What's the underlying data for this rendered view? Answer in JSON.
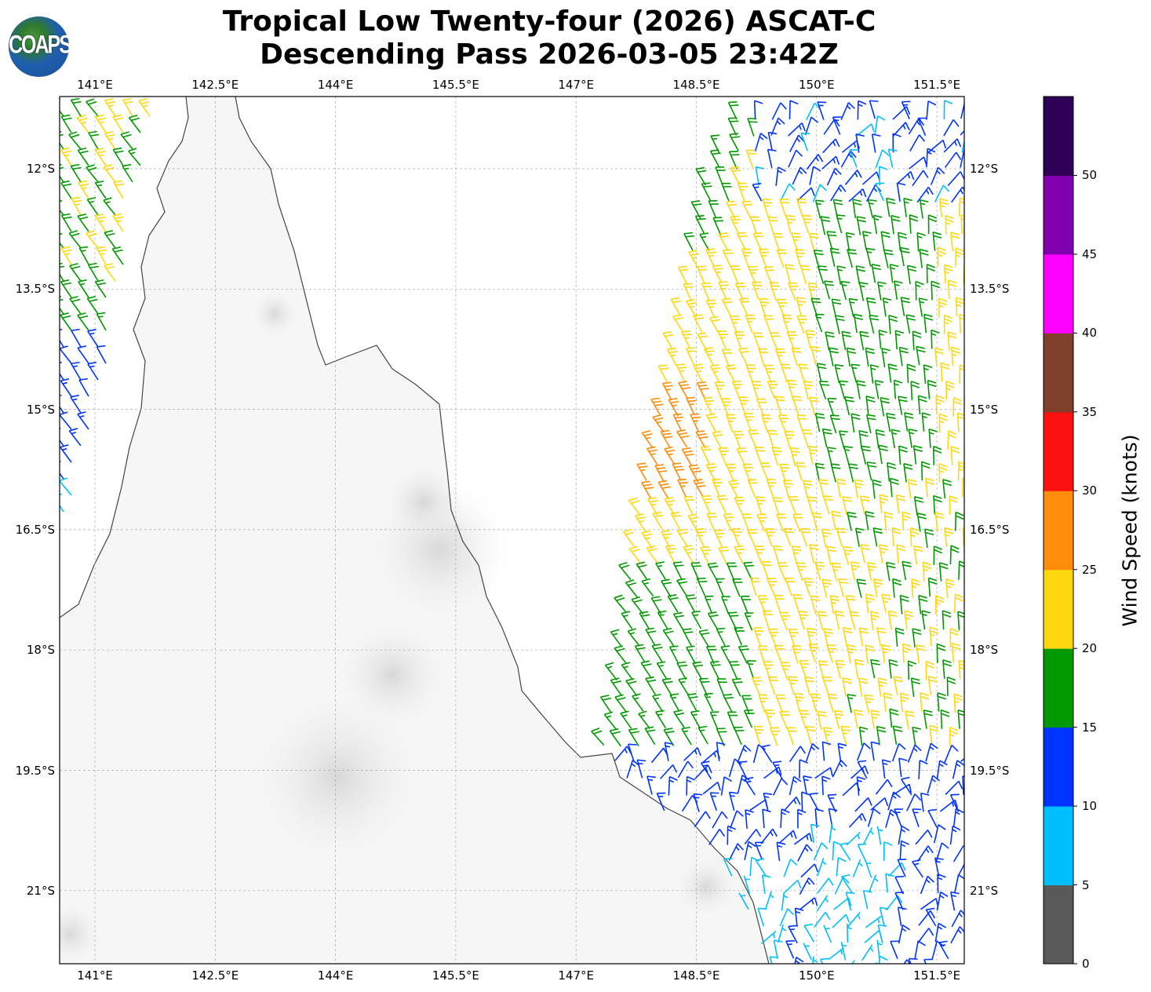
{
  "title": {
    "line1": "Tropical Low Twenty-four (2026) ASCAT-C",
    "line2": "Descending Pass 2026-03-05 23:42Z"
  },
  "logo": {
    "text": "COAPS"
  },
  "map": {
    "lon_ticks": [
      {
        "value": 141,
        "label": "141°E"
      },
      {
        "value": 142.5,
        "label": "142.5°E"
      },
      {
        "value": 144,
        "label": "144°E"
      },
      {
        "value": 145.5,
        "label": "145.5°E"
      },
      {
        "value": 147,
        "label": "147°E"
      },
      {
        "value": 148.5,
        "label": "148.5°E"
      },
      {
        "value": 150,
        "label": "150°E"
      },
      {
        "value": 151.5,
        "label": "151.5°E"
      }
    ],
    "lat_ticks": [
      {
        "value": -12,
        "label": "12°S"
      },
      {
        "value": -13.5,
        "label": "13.5°S"
      },
      {
        "value": -15,
        "label": "15°S"
      },
      {
        "value": -16.5,
        "label": "16.5°S"
      },
      {
        "value": -18,
        "label": "18°S"
      },
      {
        "value": -19.5,
        "label": "19.5°S"
      },
      {
        "value": -21,
        "label": "21°S"
      }
    ],
    "gridlines": true
  },
  "colorbar": {
    "label": "Wind Speed (knots)",
    "ticks": [
      "0",
      "5",
      "10",
      "15",
      "20",
      "25",
      "30",
      "35",
      "40",
      "45",
      "50"
    ],
    "range": [
      0,
      55
    ],
    "colors": [
      "#595959",
      "#00bfff",
      "#0033ff",
      "#009900",
      "#ffd711",
      "#ff8c0a",
      "#ff1010",
      "#7f3f2a",
      "#ff00ff",
      "#8000b0",
      "#2e0058"
    ]
  }
}
